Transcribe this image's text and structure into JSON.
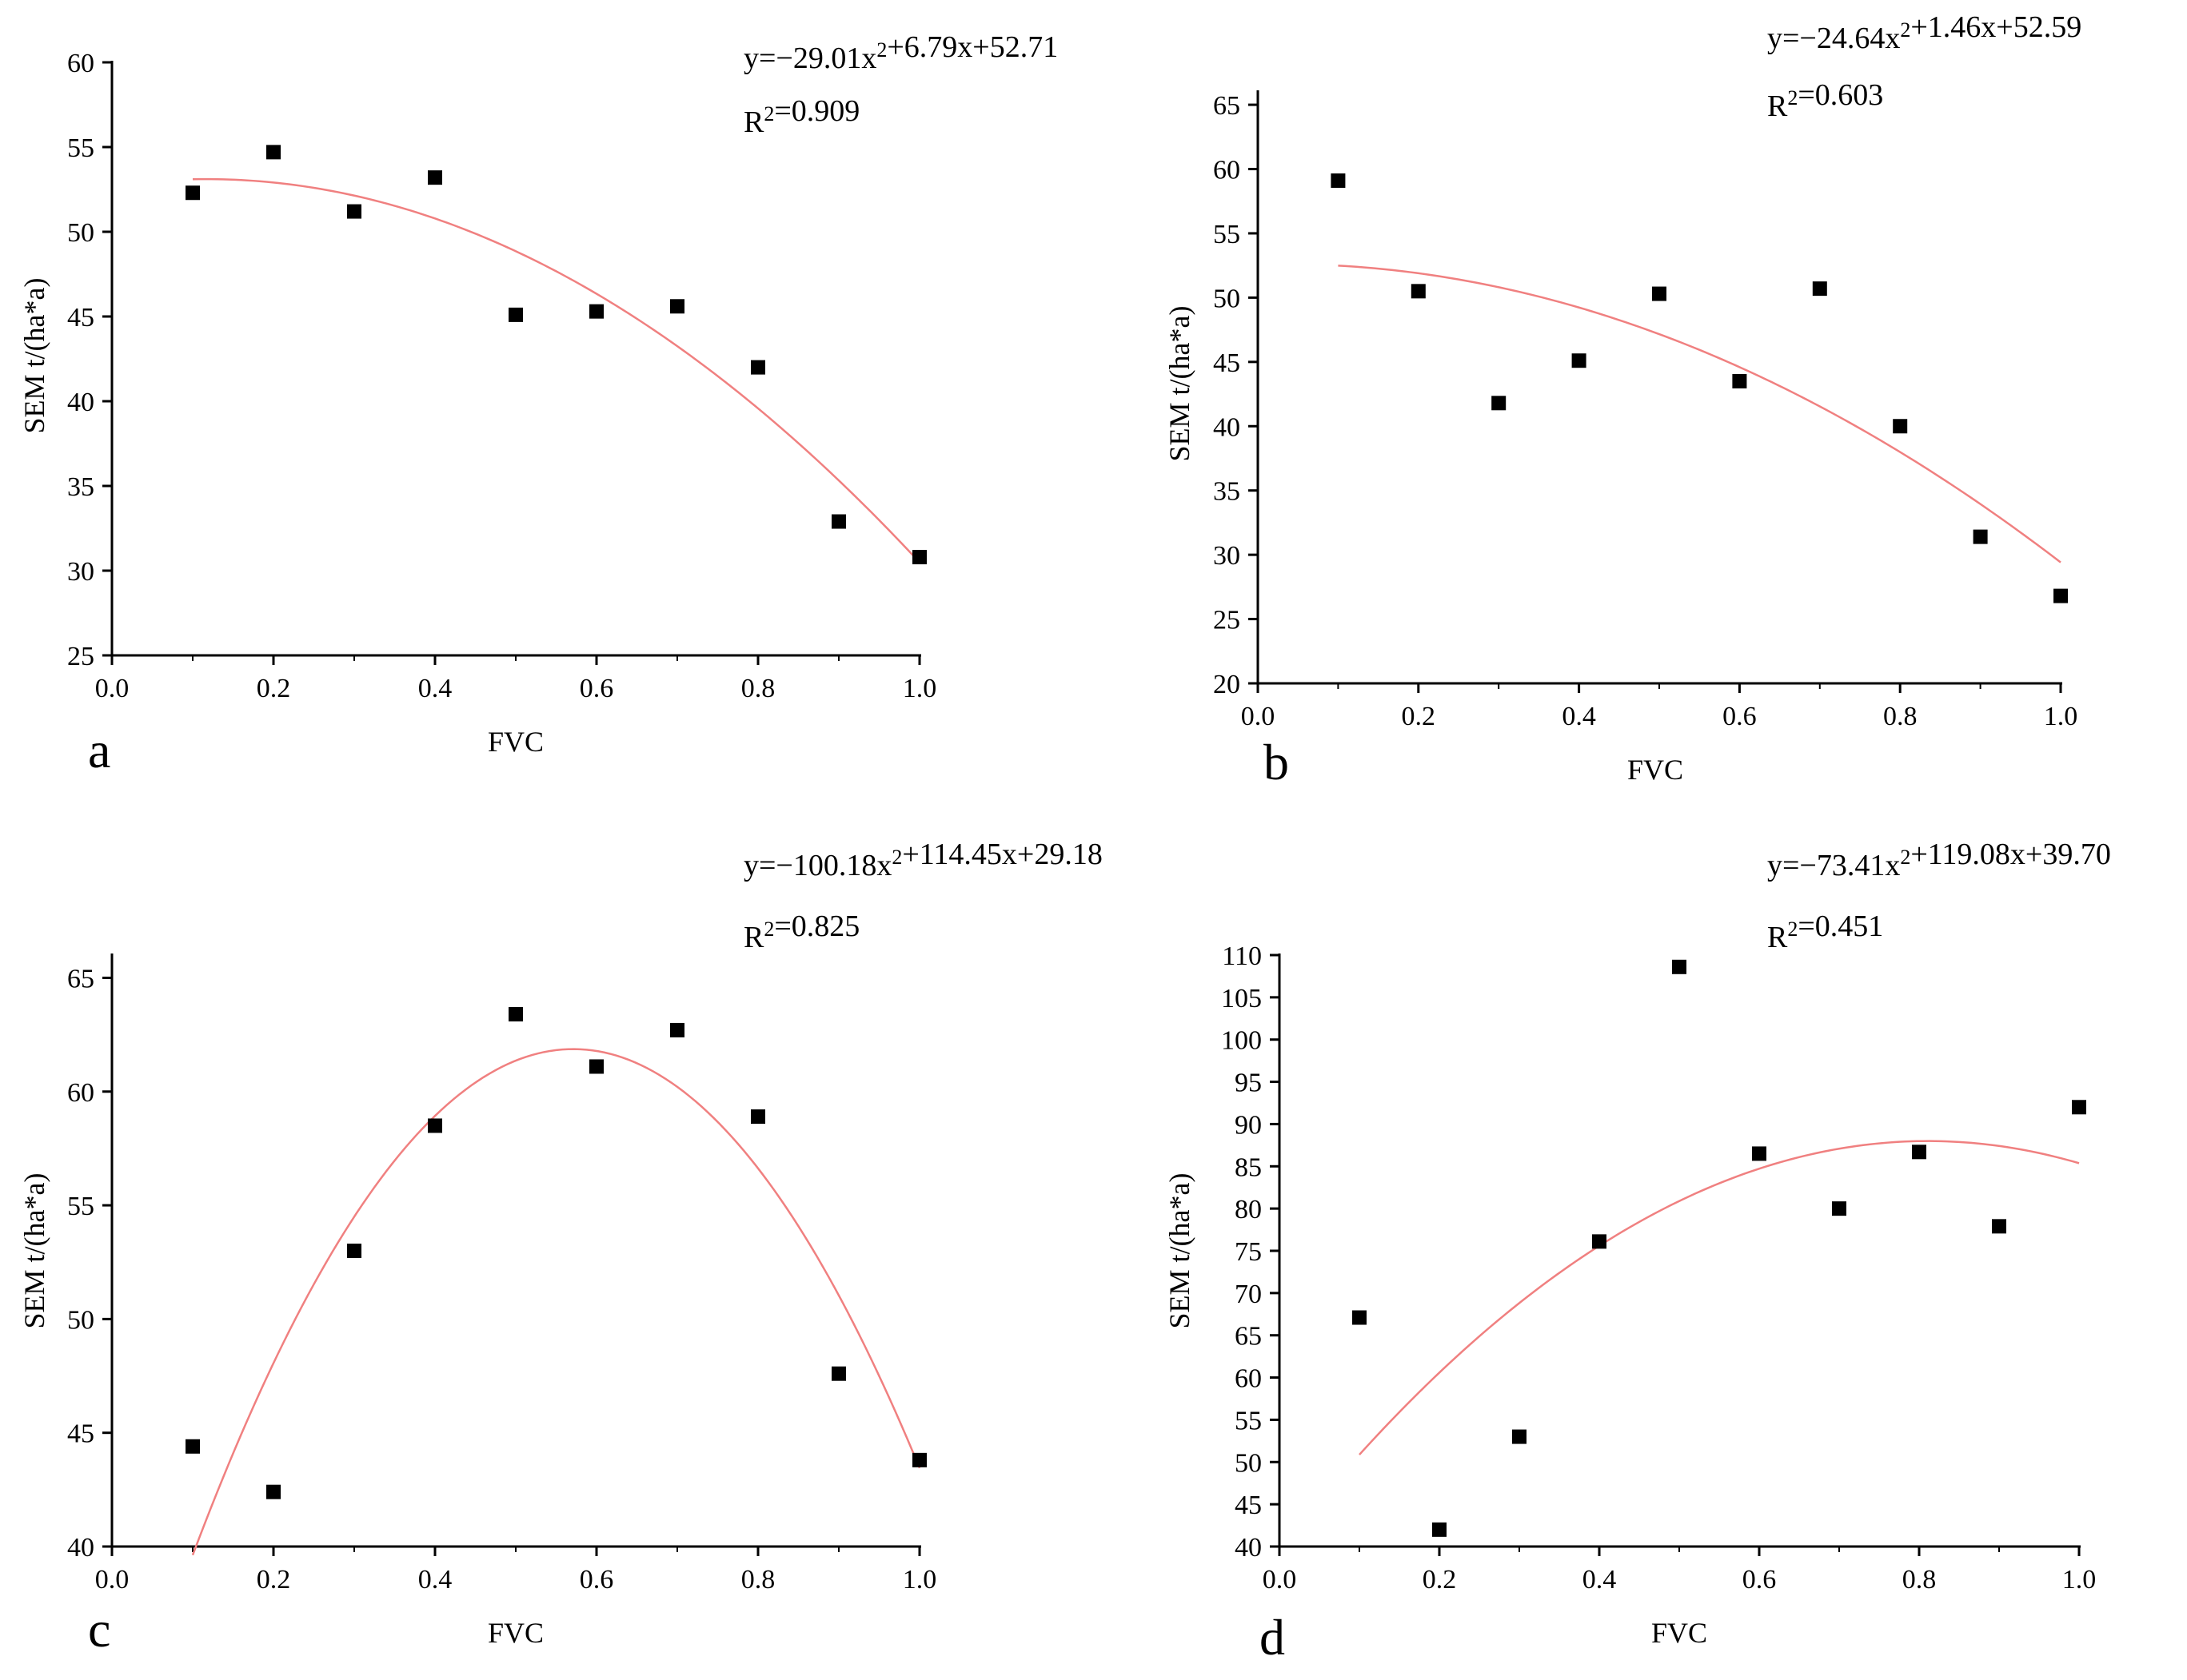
{
  "colors": {
    "points": "#000000",
    "fit_line": "#f08080",
    "axes": "#000000"
  },
  "chart_data": [
    {
      "type": "scatter",
      "panel_label": "a",
      "xlabel": "FVC",
      "ylabel": "SEM t/(ha*a)",
      "xlim": [
        0.0,
        1.0
      ],
      "ylim": [
        25,
        60
      ],
      "xticks": [
        "0.0",
        "0.2",
        "0.4",
        "0.6",
        "0.8",
        "1.0"
      ],
      "yticks": [
        "25",
        "30",
        "35",
        "40",
        "45",
        "50",
        "55",
        "60"
      ],
      "x": [
        0.1,
        0.2,
        0.3,
        0.4,
        0.5,
        0.6,
        0.7,
        0.8,
        0.9,
        1.0
      ],
      "y": [
        52.3,
        54.7,
        51.2,
        53.2,
        45.1,
        45.3,
        45.6,
        42.0,
        32.9,
        30.8
      ],
      "equation": "y=−29.01x²+6.79x+52.71",
      "r2": "R²=0.909",
      "fit": {
        "a": -29.01,
        "b": 6.79,
        "c": 52.71,
        "x_start": 0.1,
        "x_end": 1.0
      }
    },
    {
      "type": "scatter",
      "panel_label": "b",
      "xlabel": "FVC",
      "ylabel": "SEM t/(ha*a)",
      "xlim": [
        0.0,
        1.0
      ],
      "ylim": [
        20,
        66
      ],
      "xticks": [
        "0.0",
        "0.2",
        "0.4",
        "0.6",
        "0.8",
        "1.0"
      ],
      "yticks": [
        "20",
        "25",
        "30",
        "35",
        "40",
        "45",
        "50",
        "55",
        "60",
        "65"
      ],
      "x": [
        0.1,
        0.2,
        0.3,
        0.4,
        0.5,
        0.6,
        0.7,
        0.8,
        0.9,
        1.0
      ],
      "y": [
        59.1,
        50.5,
        41.8,
        45.1,
        50.3,
        43.5,
        50.7,
        40.0,
        31.4,
        26.8
      ],
      "equation": "y=−24.64x²+1.46x+52.59",
      "r2": "R²=0.603",
      "fit": {
        "a": -24.64,
        "b": 1.46,
        "c": 52.59,
        "x_start": 0.1,
        "x_end": 1.0
      }
    },
    {
      "type": "scatter",
      "panel_label": "c",
      "xlabel": "FVC",
      "ylabel": "SEM t/(ha*a)",
      "xlim": [
        0.0,
        1.0
      ],
      "ylim": [
        40,
        66
      ],
      "xticks": [
        "0.0",
        "0.2",
        "0.4",
        "0.6",
        "0.8",
        "1.0"
      ],
      "yticks": [
        "40",
        "45",
        "50",
        "55",
        "60",
        "65"
      ],
      "x": [
        0.1,
        0.2,
        0.3,
        0.4,
        0.5,
        0.6,
        0.7,
        0.8,
        0.9,
        1.0
      ],
      "y": [
        44.4,
        42.4,
        53.0,
        58.5,
        63.4,
        61.1,
        62.7,
        58.9,
        47.6,
        43.8
      ],
      "equation": "y=−100.18x²+114.45x+29.18",
      "r2": "R²=0.825",
      "fit": {
        "a": -100.18,
        "b": 114.45,
        "c": 29.18,
        "x_start": 0.1,
        "x_end": 1.0
      }
    },
    {
      "type": "scatter",
      "panel_label": "d",
      "xlabel": "FVC",
      "ylabel": "SEM t/(ha*a)",
      "xlim": [
        0.0,
        1.0
      ],
      "ylim": [
        40,
        110
      ],
      "xticks": [
        "0.0",
        "0.2",
        "0.4",
        "0.6",
        "0.8",
        "1.0"
      ],
      "yticks": [
        "40",
        "45",
        "50",
        "55",
        "60",
        "65",
        "70",
        "75",
        "80",
        "85",
        "90",
        "95",
        "100",
        "105",
        "110"
      ],
      "x": [
        0.1,
        0.2,
        0.3,
        0.4,
        0.5,
        0.6,
        0.7,
        0.8,
        0.9,
        1.0
      ],
      "y": [
        67.1,
        42.0,
        53.0,
        76.1,
        108.6,
        86.5,
        80.0,
        86.7,
        77.9,
        92.0
      ],
      "equation": "y=−73.41x²+119.08x+39.70",
      "r2": "R²=0.451",
      "fit": {
        "a": -73.41,
        "b": 119.08,
        "c": 39.7,
        "x_start": 0.1,
        "x_end": 1.0
      }
    }
  ]
}
